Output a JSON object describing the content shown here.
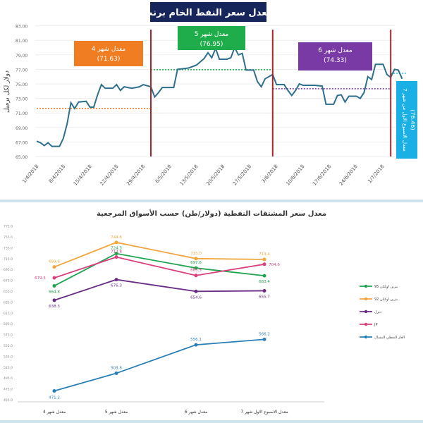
{
  "chart_data": [
    {
      "type": "line",
      "title": "معدل سعر النفط الخام برنت",
      "ylabel": "دولار لكل برميل",
      "ylim": [
        65,
        83
      ],
      "yticks": [
        "65.00",
        "67.00",
        "69.00",
        "71.00",
        "73.00",
        "75.00",
        "77.00",
        "79.00",
        "81.00",
        "83.00"
      ],
      "xticks": [
        "1/4/2018",
        "8/4/2018",
        "15/4/2018",
        "22/4/2018",
        "29/4/2018",
        "6/5/2018",
        "13/5/2018",
        "20/5/2018",
        "27/5/2018",
        "3/6/2018",
        "10/6/2018",
        "17/6/2018",
        "24/6/2018",
        "1/7/2018"
      ],
      "series": {
        "name": "Brent",
        "color": "#2e6f8e",
        "points": [
          [
            0,
            67.1
          ],
          [
            1,
            66.9
          ],
          [
            2,
            66.5
          ],
          [
            3,
            66.9
          ],
          [
            4,
            66.4
          ],
          [
            6,
            66.4
          ],
          [
            7,
            67.5
          ],
          [
            8,
            69.5
          ],
          [
            9,
            72.4
          ],
          [
            10,
            71.6
          ],
          [
            11,
            72.5
          ],
          [
            13,
            72.6
          ],
          [
            14,
            71.8
          ],
          [
            15,
            71.8
          ],
          [
            16,
            73.5
          ],
          [
            17,
            74.9
          ],
          [
            18,
            74.4
          ],
          [
            20,
            74.4
          ],
          [
            21,
            74.9
          ],
          [
            22,
            74.1
          ],
          [
            23,
            74.6
          ],
          [
            25,
            74.4
          ],
          [
            27,
            74.6
          ],
          [
            28,
            74.9
          ],
          [
            30,
            74.6
          ],
          [
            31,
            73.2
          ],
          [
            32,
            73.8
          ],
          [
            33,
            74.5
          ],
          [
            36,
            74.5
          ],
          [
            37,
            77.0
          ],
          [
            40,
            77.2
          ],
          [
            42,
            77.6
          ],
          [
            44,
            78.5
          ],
          [
            45,
            79.3
          ],
          [
            46,
            78.6
          ],
          [
            47,
            79.9
          ],
          [
            48,
            78.4
          ],
          [
            50,
            78.4
          ],
          [
            51,
            78.6
          ],
          [
            52,
            80.0
          ],
          [
            53,
            79.0
          ],
          [
            54,
            79.2
          ],
          [
            55,
            76.9
          ],
          [
            57,
            76.9
          ],
          [
            58,
            75.3
          ],
          [
            59,
            74.6
          ],
          [
            60,
            75.7
          ],
          [
            62,
            76.3
          ],
          [
            63,
            74.9
          ],
          [
            65,
            74.9
          ],
          [
            66,
            74.1
          ],
          [
            67,
            73.4
          ],
          [
            68,
            74.1
          ],
          [
            69,
            75.0
          ],
          [
            70,
            74.8
          ],
          [
            73,
            74.8
          ],
          [
            75,
            74.7
          ],
          [
            76,
            72.2
          ],
          [
            78,
            72.2
          ],
          [
            79,
            73.4
          ],
          [
            80,
            73.5
          ],
          [
            81,
            72.5
          ],
          [
            82,
            73.3
          ],
          [
            84,
            73.3
          ],
          [
            85,
            73.0
          ],
          [
            86,
            73.8
          ],
          [
            87,
            76.0
          ],
          [
            88,
            75.6
          ],
          [
            89,
            77.7
          ],
          [
            91,
            77.7
          ],
          [
            92,
            76.3
          ],
          [
            93,
            75.9
          ],
          [
            94,
            77.0
          ],
          [
            95,
            76.9
          ],
          [
            96,
            75.7
          ]
        ]
      },
      "month_dividers": [
        30,
        62,
        93
      ],
      "averages": [
        {
          "label": "معدل شهر 4",
          "value": "(71.63)",
          "v": 71.63,
          "from": 0,
          "to": 30,
          "color": "#f07d22"
        },
        {
          "label": "معدل شهر 5",
          "value": "(76.95)",
          "v": 76.95,
          "from": 30,
          "to": 62,
          "color": "#1fad4c"
        },
        {
          "label": "معدل شهر 6",
          "value": "(74.33)",
          "v": 74.33,
          "from": 62,
          "to": 93,
          "color": "#7a3aa6"
        },
        {
          "label": "معدل الاسبوع الاول من شهر 7",
          "value": "(76.46)",
          "v": 76.46,
          "from": 93,
          "to": 97,
          "color": "#1ab0e6"
        }
      ]
    },
    {
      "type": "line",
      "title": "معدل سعر المشتقات النفطية (دولار/طن) حسب الأسواق المرجعية",
      "ylim": [
        455,
        775
      ],
      "yticks": [
        "775.0",
        "755.0",
        "735.0",
        "715.0",
        "695.0",
        "675.0",
        "655.0",
        "635.0",
        "615.0",
        "595.0",
        "575.0",
        "555.0",
        "535.0",
        "515.0",
        "495.0",
        "475.0",
        "455.0"
      ],
      "categories": [
        "معدل شهر 4",
        "معدل شهر 5",
        "معدل شهر 6",
        "معدل الاسبوع الاول شهر 7"
      ],
      "series": [
        {
          "name": "بنزين اوكتان 95",
          "color": "#1ea34f",
          "values": [
            664.8,
            724.3,
            697.6,
            683.4
          ],
          "labels": [
            "664.8",
            "724.3",
            "697.6",
            "683.4"
          ]
        },
        {
          "name": "بنزين اوكتان 92",
          "color": "#f2a640",
          "values": [
            699.6,
            744.8,
            715.0,
            713.4
          ],
          "labels": [
            "699.6",
            "744.8",
            "715.0",
            "713.4"
          ]
        },
        {
          "name": "ديزل",
          "color": "#6a2d86",
          "values": [
            638.3,
            676.3,
            654.6,
            655.7
          ],
          "labels": [
            "638.3",
            "676.3",
            "654.6",
            "655.7"
          ]
        },
        {
          "name": "JP",
          "color": "#d9407d",
          "values": [
            679.5,
            717.8,
            683.9,
            704.6
          ],
          "labels": [
            "679.5",
            "717.8",
            "683.9",
            "704.6"
          ]
        },
        {
          "name": "الغاز النفطي المسال",
          "color": "#2a7fb5",
          "values": [
            471.2,
            503.8,
            556.1,
            566.2
          ],
          "labels": [
            "471.2",
            "503.8",
            "556.1",
            "566.2"
          ]
        }
      ]
    }
  ]
}
